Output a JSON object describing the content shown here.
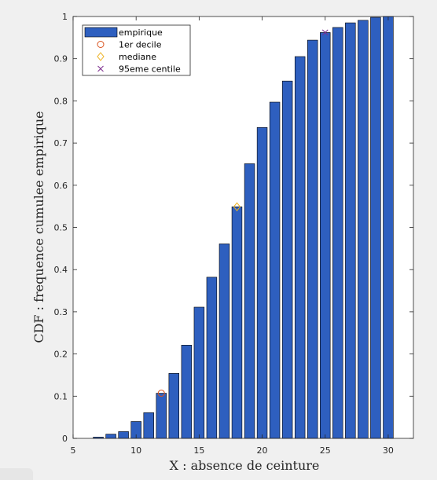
{
  "chart_data": {
    "type": "bar",
    "xlabel": "X : absence de ceinture",
    "ylabel": "CDF : frequence cumulee empirique",
    "xlim": [
      5,
      32
    ],
    "ylim": [
      0,
      1
    ],
    "xticks": [
      5,
      10,
      15,
      20,
      25,
      30
    ],
    "yticks": [
      0,
      0.1,
      0.2,
      0.3,
      0.4,
      0.5,
      0.6,
      0.7,
      0.8,
      0.9,
      1
    ],
    "x": [
      7,
      8,
      9,
      10,
      11,
      12,
      13,
      14,
      15,
      16,
      17,
      18,
      19,
      20,
      21,
      22,
      23,
      24,
      25,
      26,
      27,
      28,
      29,
      30
    ],
    "series": [
      {
        "name": "empirique",
        "values": [
          0.003,
          0.01,
          0.016,
          0.04,
          0.061,
          0.107,
          0.154,
          0.221,
          0.311,
          0.382,
          0.461,
          0.549,
          0.651,
          0.737,
          0.797,
          0.847,
          0.905,
          0.944,
          0.962,
          0.974,
          0.985,
          0.991,
          0.998,
          1.0
        ],
        "color": "#2e5fbf"
      }
    ],
    "markers": [
      {
        "name": "1er decile",
        "x": 12,
        "y": 0.107,
        "symbol": "circle",
        "color": "#d9531e"
      },
      {
        "name": "mediane",
        "x": 18,
        "y": 0.549,
        "symbol": "diamond",
        "color": "#edb120"
      },
      {
        "name": "95eme centile",
        "x": 25,
        "y": 0.962,
        "symbol": "cross",
        "color": "#7e2f8e"
      }
    ],
    "legend_position": "top-left",
    "grid": false
  }
}
